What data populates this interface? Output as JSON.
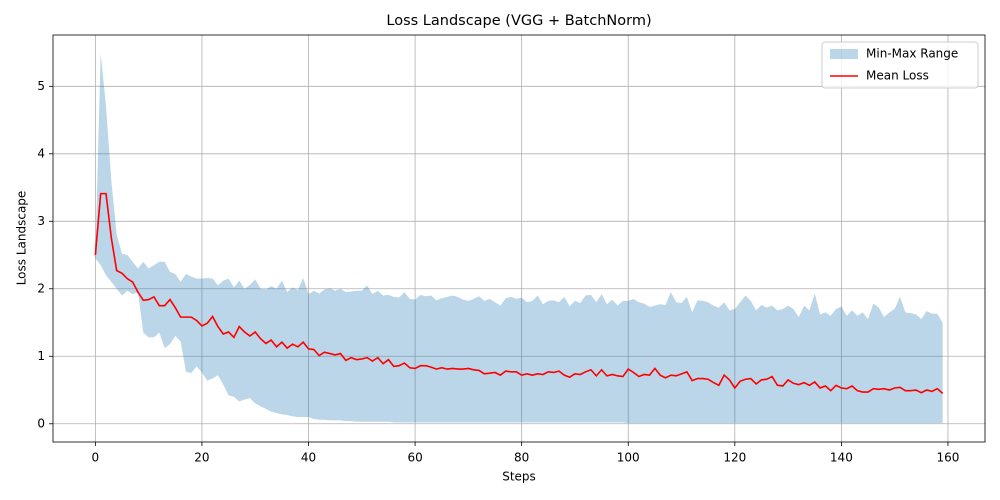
{
  "chart_data": {
    "type": "line",
    "title": "Loss Landscape (VGG + BatchNorm)",
    "xlabel": "Steps",
    "ylabel": "Loss Landscape",
    "xlim": [
      -7.95,
      166.95
    ],
    "ylim": [
      -0.27,
      5.76
    ],
    "xticks": [
      0,
      20,
      40,
      60,
      80,
      100,
      120,
      140,
      160
    ],
    "yticks": [
      0,
      1,
      2,
      3,
      4,
      5
    ],
    "grid": true,
    "legend": "upper right",
    "x": [
      0,
      1,
      2,
      3,
      4,
      5,
      6,
      7,
      8,
      9,
      10,
      11,
      12,
      13,
      14,
      15,
      16,
      17,
      18,
      19,
      20,
      21,
      22,
      23,
      24,
      25,
      26,
      27,
      28,
      29,
      30,
      31,
      32,
      33,
      34,
      35,
      36,
      37,
      38,
      39,
      40,
      41,
      42,
      43,
      44,
      45,
      46,
      47,
      48,
      49,
      50,
      51,
      52,
      53,
      54,
      55,
      56,
      57,
      58,
      59,
      60,
      61,
      62,
      63,
      64,
      65,
      66,
      67,
      68,
      69,
      70,
      71,
      72,
      73,
      74,
      75,
      76,
      77,
      78,
      79,
      80,
      81,
      82,
      83,
      84,
      85,
      86,
      87,
      88,
      89,
      90,
      91,
      92,
      93,
      94,
      95,
      96,
      97,
      98,
      99,
      100,
      101,
      102,
      103,
      104,
      105,
      106,
      107,
      108,
      109,
      110,
      111,
      112,
      113,
      114,
      115,
      116,
      117,
      118,
      119,
      120,
      121,
      122,
      123,
      124,
      125,
      126,
      127,
      128,
      129,
      130,
      131,
      132,
      133,
      134,
      135,
      136,
      137,
      138,
      139,
      140,
      141,
      142,
      143,
      144,
      145,
      146,
      147,
      148,
      149,
      150,
      151,
      152,
      153,
      154,
      155,
      156,
      157,
      158,
      159
    ],
    "series": [
      {
        "name": "Min-Max Range",
        "kind": "band",
        "color": "#1f77b4",
        "opacity": 0.3,
        "lower": [
          2.45,
          2.35,
          2.2,
          2.1,
          2.0,
          1.9,
          1.97,
          1.92,
          1.95,
          1.35,
          1.28,
          1.28,
          1.35,
          1.12,
          1.18,
          1.3,
          1.22,
          0.77,
          0.75,
          0.85,
          0.76,
          0.64,
          0.67,
          0.72,
          0.58,
          0.42,
          0.4,
          0.33,
          0.36,
          0.38,
          0.3,
          0.26,
          0.22,
          0.18,
          0.16,
          0.14,
          0.13,
          0.11,
          0.1,
          0.1,
          0.1,
          0.07,
          0.06,
          0.06,
          0.05,
          0.05,
          0.05,
          0.04,
          0.04,
          0.03,
          0.03,
          0.03,
          0.03,
          0.03,
          0.03,
          0.03,
          0.02,
          0.02,
          0.02,
          0.02,
          0.02,
          0.02,
          0.02,
          0.02,
          0.02,
          0.02,
          0.02,
          0.02,
          0.02,
          0.02,
          0.02,
          0.02,
          0.02,
          0.02,
          0.02,
          0.02,
          0.02,
          0.02,
          0.02,
          0.02,
          0.02,
          0.02,
          0.02,
          0.02,
          0.02,
          0.02,
          0.02,
          0.02,
          0.02,
          0.02,
          0.02,
          0.02,
          0.02,
          0.02,
          0.02,
          0.02,
          0.02,
          0.02,
          0.02,
          0.02,
          0.01,
          0.01,
          0.01,
          0.01,
          0.01,
          0.01,
          0.01,
          0.01,
          0.01,
          0.01,
          0.01,
          0.01,
          0.01,
          0.01,
          0.01,
          0.01,
          0.01,
          0.01,
          0.01,
          0.01,
          0.01,
          0.01,
          0.01,
          0.01,
          0.01,
          0.01,
          0.01,
          0.01,
          0.01,
          0.01,
          0.01,
          0.01,
          0.01,
          0.01,
          0.01,
          0.01,
          0.01,
          0.01,
          0.01,
          0.01,
          0.01,
          0.01,
          0.01,
          0.01,
          0.01,
          0.01,
          0.01,
          0.01,
          0.01,
          0.01,
          0.01,
          0.01,
          0.01,
          0.01,
          0.01,
          0.01,
          0.01,
          0.01,
          0.01,
          0.01
        ],
        "upper": [
          2.5,
          5.49,
          4.7,
          3.6,
          2.8,
          2.52,
          2.5,
          2.4,
          2.3,
          2.4,
          2.3,
          2.35,
          2.4,
          2.4,
          2.25,
          2.22,
          2.1,
          2.22,
          2.18,
          2.15,
          2.15,
          2.16,
          2.15,
          2.05,
          2.12,
          2.15,
          2.02,
          2.12,
          2.0,
          2.06,
          2.14,
          2.0,
          1.99,
          2.04,
          2.0,
          2.12,
          1.95,
          2.02,
          1.98,
          2.16,
          1.92,
          1.97,
          1.93,
          1.99,
          2.01,
          1.97,
          2.0,
          1.95,
          1.96,
          1.97,
          1.97,
          2.05,
          1.92,
          1.97,
          1.9,
          1.91,
          1.88,
          1.87,
          1.95,
          1.85,
          1.84,
          1.91,
          1.89,
          1.9,
          1.83,
          1.86,
          1.88,
          1.9,
          1.88,
          1.84,
          1.82,
          1.85,
          1.89,
          1.82,
          1.85,
          1.8,
          1.75,
          1.86,
          1.88,
          1.85,
          1.87,
          1.8,
          1.82,
          1.9,
          1.77,
          1.82,
          1.83,
          1.8,
          1.88,
          1.74,
          1.82,
          1.79,
          1.9,
          1.91,
          1.8,
          1.92,
          1.77,
          1.84,
          1.75,
          1.82,
          1.82,
          1.85,
          1.8,
          1.78,
          1.73,
          1.75,
          1.77,
          1.76,
          1.95,
          1.8,
          1.79,
          1.88,
          1.65,
          1.83,
          1.82,
          1.8,
          1.75,
          1.72,
          1.8,
          1.68,
          1.7,
          1.8,
          1.9,
          1.82,
          1.68,
          1.76,
          1.72,
          1.75,
          1.68,
          1.7,
          1.75,
          1.7,
          1.58,
          1.75,
          1.68,
          1.93,
          1.62,
          1.65,
          1.6,
          1.7,
          1.74,
          1.6,
          1.68,
          1.6,
          1.65,
          1.55,
          1.78,
          1.72,
          1.58,
          1.65,
          1.7,
          1.88,
          1.65,
          1.64,
          1.62,
          1.55,
          1.67,
          1.63,
          1.63,
          1.5
        ]
      },
      {
        "name": "Mean Loss",
        "kind": "line",
        "color": "#ff0000",
        "values": [
          2.5,
          3.41,
          3.41,
          2.75,
          2.27,
          2.23,
          2.15,
          2.1,
          1.95,
          1.83,
          1.84,
          1.88,
          1.75,
          1.75,
          1.84,
          1.72,
          1.58,
          1.58,
          1.58,
          1.53,
          1.45,
          1.49,
          1.59,
          1.44,
          1.33,
          1.36,
          1.28,
          1.44,
          1.36,
          1.3,
          1.36,
          1.26,
          1.19,
          1.24,
          1.14,
          1.21,
          1.12,
          1.18,
          1.14,
          1.21,
          1.11,
          1.1,
          1.01,
          1.06,
          1.04,
          1.02,
          1.04,
          0.94,
          0.98,
          0.95,
          0.96,
          0.98,
          0.93,
          0.98,
          0.89,
          0.95,
          0.85,
          0.86,
          0.9,
          0.83,
          0.82,
          0.86,
          0.86,
          0.84,
          0.81,
          0.83,
          0.81,
          0.82,
          0.81,
          0.81,
          0.82,
          0.8,
          0.79,
          0.74,
          0.75,
          0.76,
          0.72,
          0.78,
          0.77,
          0.77,
          0.72,
          0.74,
          0.72,
          0.74,
          0.73,
          0.77,
          0.76,
          0.78,
          0.72,
          0.69,
          0.74,
          0.73,
          0.77,
          0.8,
          0.71,
          0.8,
          0.71,
          0.73,
          0.71,
          0.7,
          0.81,
          0.76,
          0.7,
          0.73,
          0.72,
          0.82,
          0.72,
          0.68,
          0.72,
          0.71,
          0.74,
          0.77,
          0.64,
          0.67,
          0.67,
          0.66,
          0.61,
          0.57,
          0.72,
          0.65,
          0.53,
          0.63,
          0.66,
          0.67,
          0.59,
          0.65,
          0.66,
          0.7,
          0.57,
          0.56,
          0.65,
          0.6,
          0.58,
          0.61,
          0.57,
          0.62,
          0.53,
          0.56,
          0.49,
          0.57,
          0.53,
          0.52,
          0.56,
          0.49,
          0.47,
          0.47,
          0.52,
          0.51,
          0.52,
          0.5,
          0.53,
          0.54,
          0.49,
          0.49,
          0.5,
          0.46,
          0.5,
          0.48,
          0.52,
          0.45
        ]
      }
    ]
  }
}
